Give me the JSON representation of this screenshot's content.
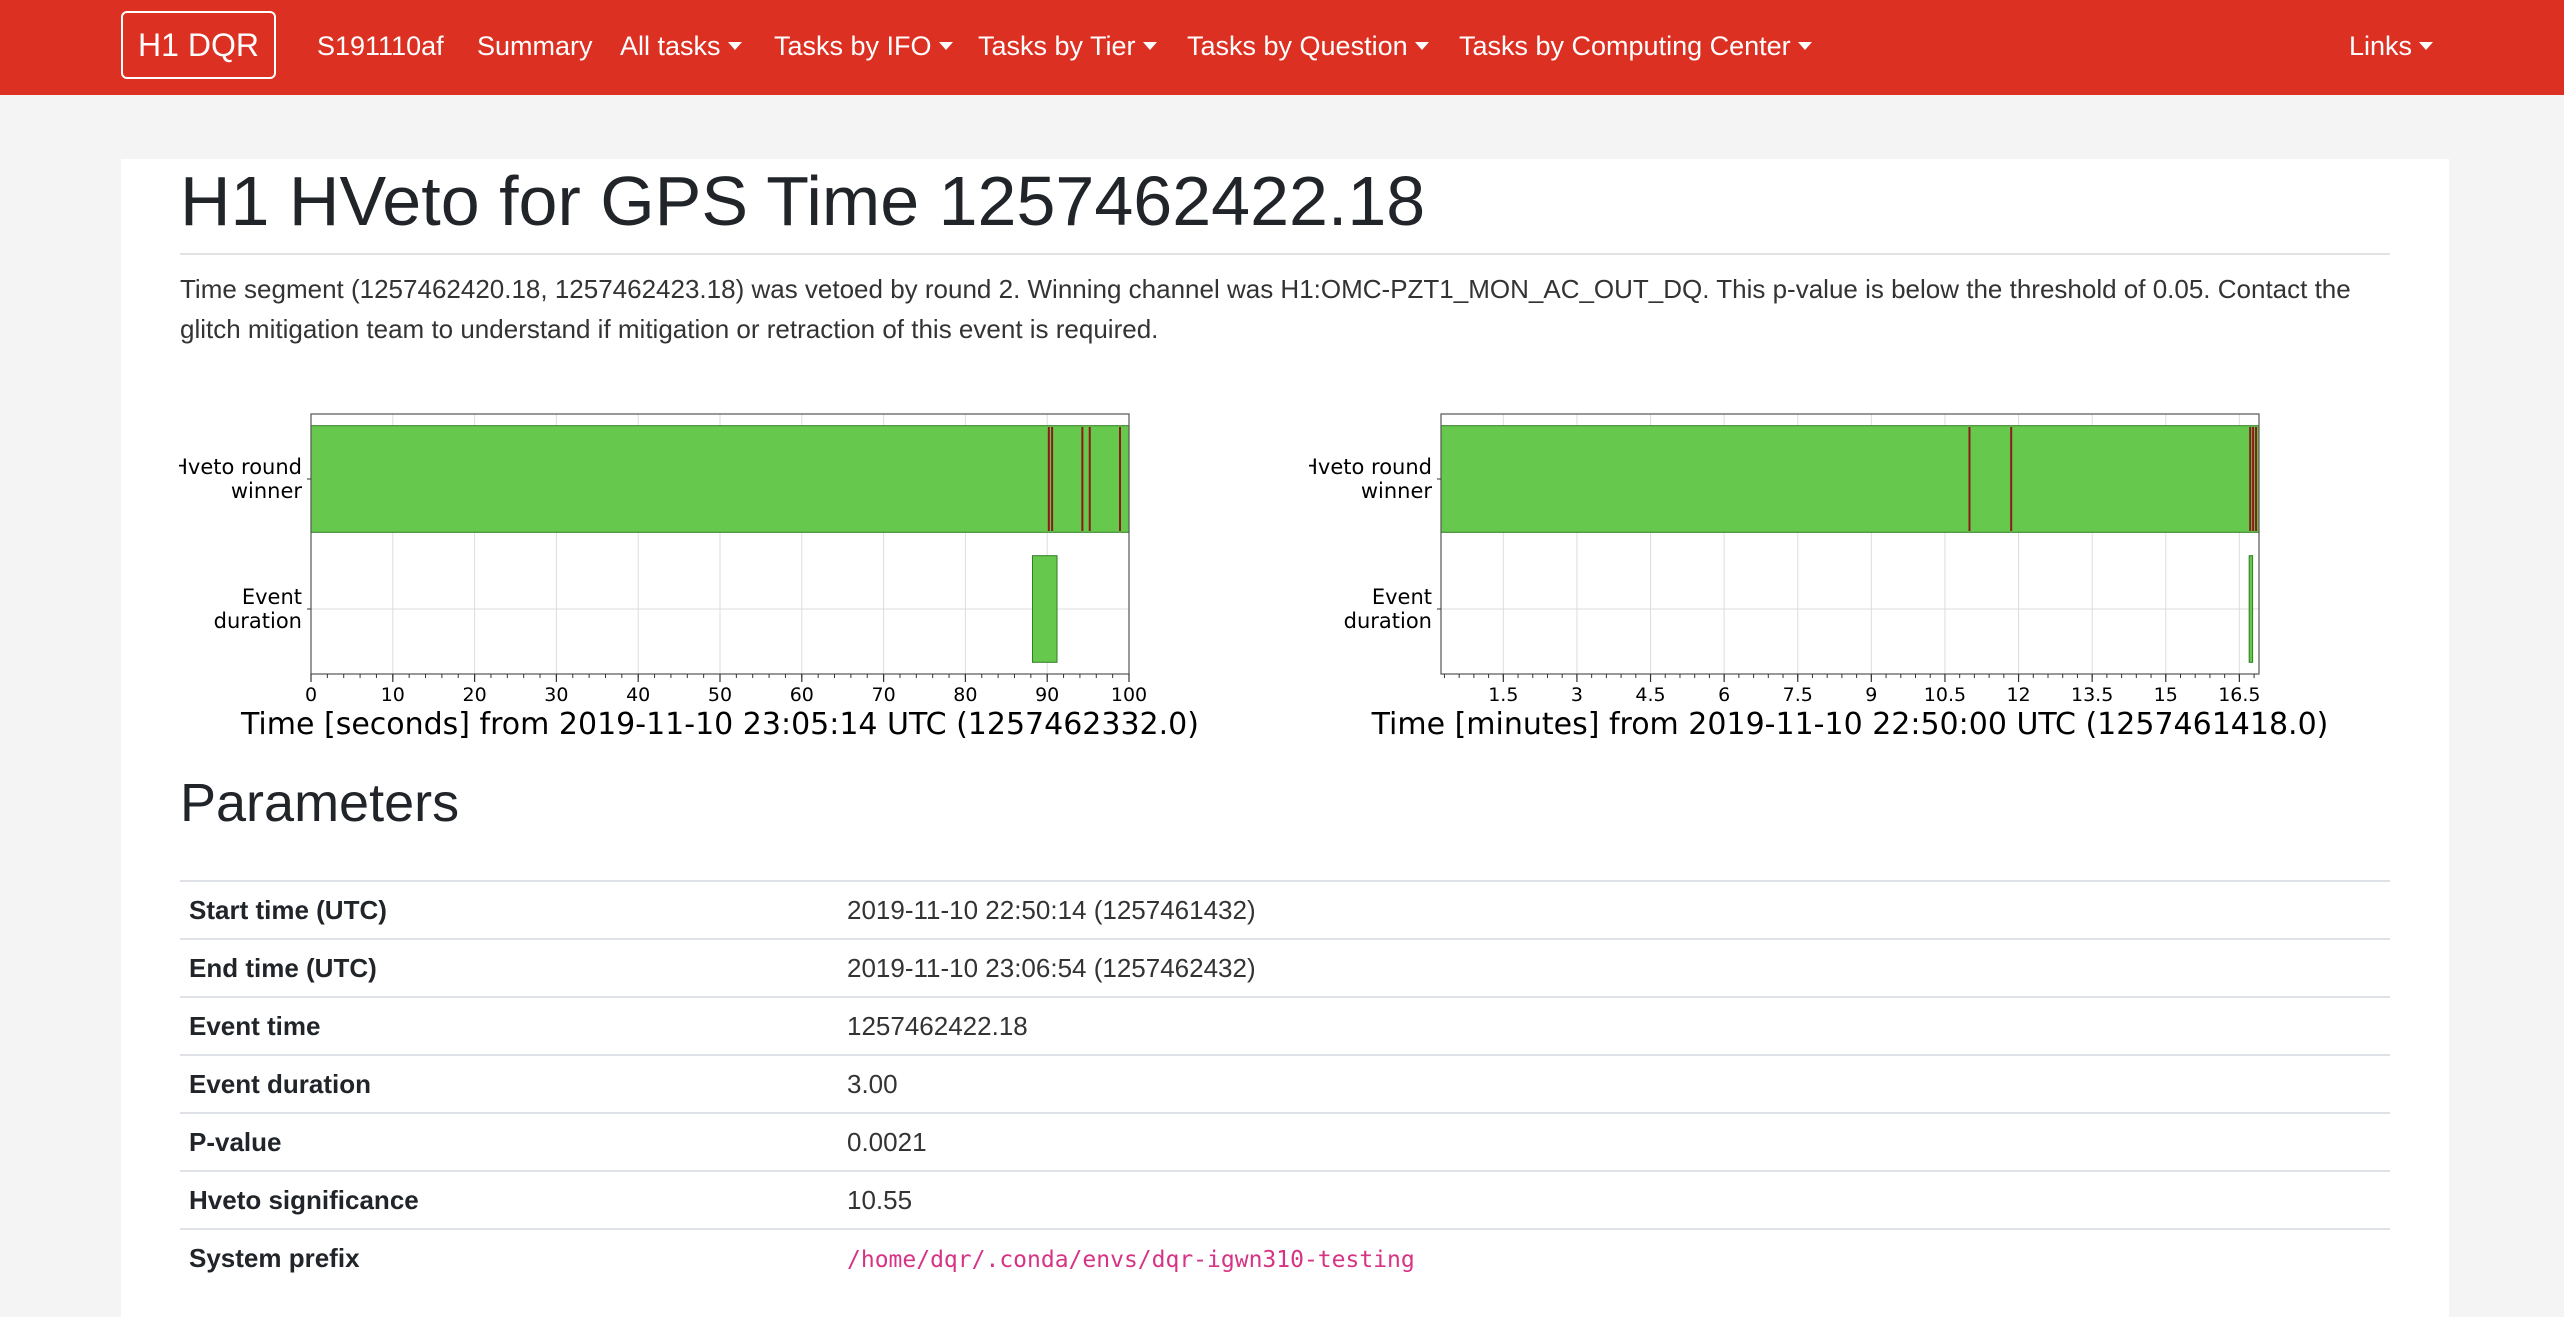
{
  "navbar": {
    "brand": "H1 DQR",
    "items": [
      {
        "label": "S191110af",
        "dropdown": false
      },
      {
        "label": "Summary",
        "dropdown": false
      },
      {
        "label": "All tasks",
        "dropdown": true
      },
      {
        "label": "Tasks by IFO",
        "dropdown": true
      },
      {
        "label": "Tasks by Tier",
        "dropdown": true
      },
      {
        "label": "Tasks by Question",
        "dropdown": true
      },
      {
        "label": "Tasks by Computing Center",
        "dropdown": true
      }
    ],
    "links_label": "Links",
    "color": "#dc3023"
  },
  "page": {
    "title": "H1 HVeto for GPS Time 1257462422.18",
    "description": "Time segment (1257462420.18, 1257462423.18) was vetoed by round 2. Winning channel was H1:OMC-PZT1_MON_AC_OUT_DQ. This p-value is below the threshold of 0.05. Contact the glitch mitigation team to understand if mitigation or retraction of this event is required."
  },
  "chart_data": [
    {
      "type": "bar",
      "subtype": "segment-timeline",
      "categories": [
        "Hveto round winner",
        "Event duration"
      ],
      "xlabel": "Time [seconds] from 2019-11-10 23:05:14 UTC (1257462332.0)",
      "xlim": [
        0,
        100
      ],
      "xticks": [
        "0",
        "10",
        "20",
        "30",
        "40",
        "50",
        "60",
        "70",
        "80",
        "90",
        "100"
      ],
      "grid": true,
      "series": [
        {
          "row": "Hveto round winner",
          "segments": [
            [
              0,
              100
            ]
          ],
          "color": "#66c84d"
        },
        {
          "row": "Event duration",
          "segments": [
            [
              88.2,
              91.2
            ]
          ],
          "color": "#66c84d"
        }
      ],
      "veto_lines": [
        90.2,
        90.6,
        94.3,
        95.2,
        98.9
      ],
      "veto_color": "#8b1a1a"
    },
    {
      "type": "bar",
      "subtype": "segment-timeline",
      "categories": [
        "Hveto round winner",
        "Event duration"
      ],
      "xlabel": "Time [minutes] from 2019-11-10 22:50:00 UTC (1257461418.0)",
      "xlim": [
        0.23,
        16.9
      ],
      "xticks": [
        "1.5",
        "3",
        "4.5",
        "6",
        "7.5",
        "9",
        "10.5",
        "12",
        "13.5",
        "15",
        "16.5"
      ],
      "grid": true,
      "series": [
        {
          "row": "Hveto round winner",
          "segments": [
            [
              0.23,
              16.9
            ]
          ],
          "color": "#66c84d"
        },
        {
          "row": "Event duration",
          "segments": [
            [
              16.7,
              16.77
            ]
          ],
          "color": "#66c84d"
        }
      ],
      "veto_lines": [
        11.0,
        11.85,
        16.72,
        16.78,
        16.84
      ],
      "veto_color": "#8b1a1a"
    }
  ],
  "parameters": {
    "heading": "Parameters",
    "rows": [
      {
        "key": "Start time (UTC)",
        "value": "2019-11-10 22:50:14 (1257461432)"
      },
      {
        "key": "End time (UTC)",
        "value": "2019-11-10 23:06:54 (1257462432)"
      },
      {
        "key": "Event time",
        "value": "1257462422.18"
      },
      {
        "key": "Event duration",
        "value": "3.00"
      },
      {
        "key": "P-value",
        "value": "0.0021"
      },
      {
        "key": "Hveto significance",
        "value": "10.55"
      },
      {
        "key": "System prefix",
        "value": "/home/dqr/.conda/envs/dqr-igwn310-testing"
      }
    ]
  }
}
